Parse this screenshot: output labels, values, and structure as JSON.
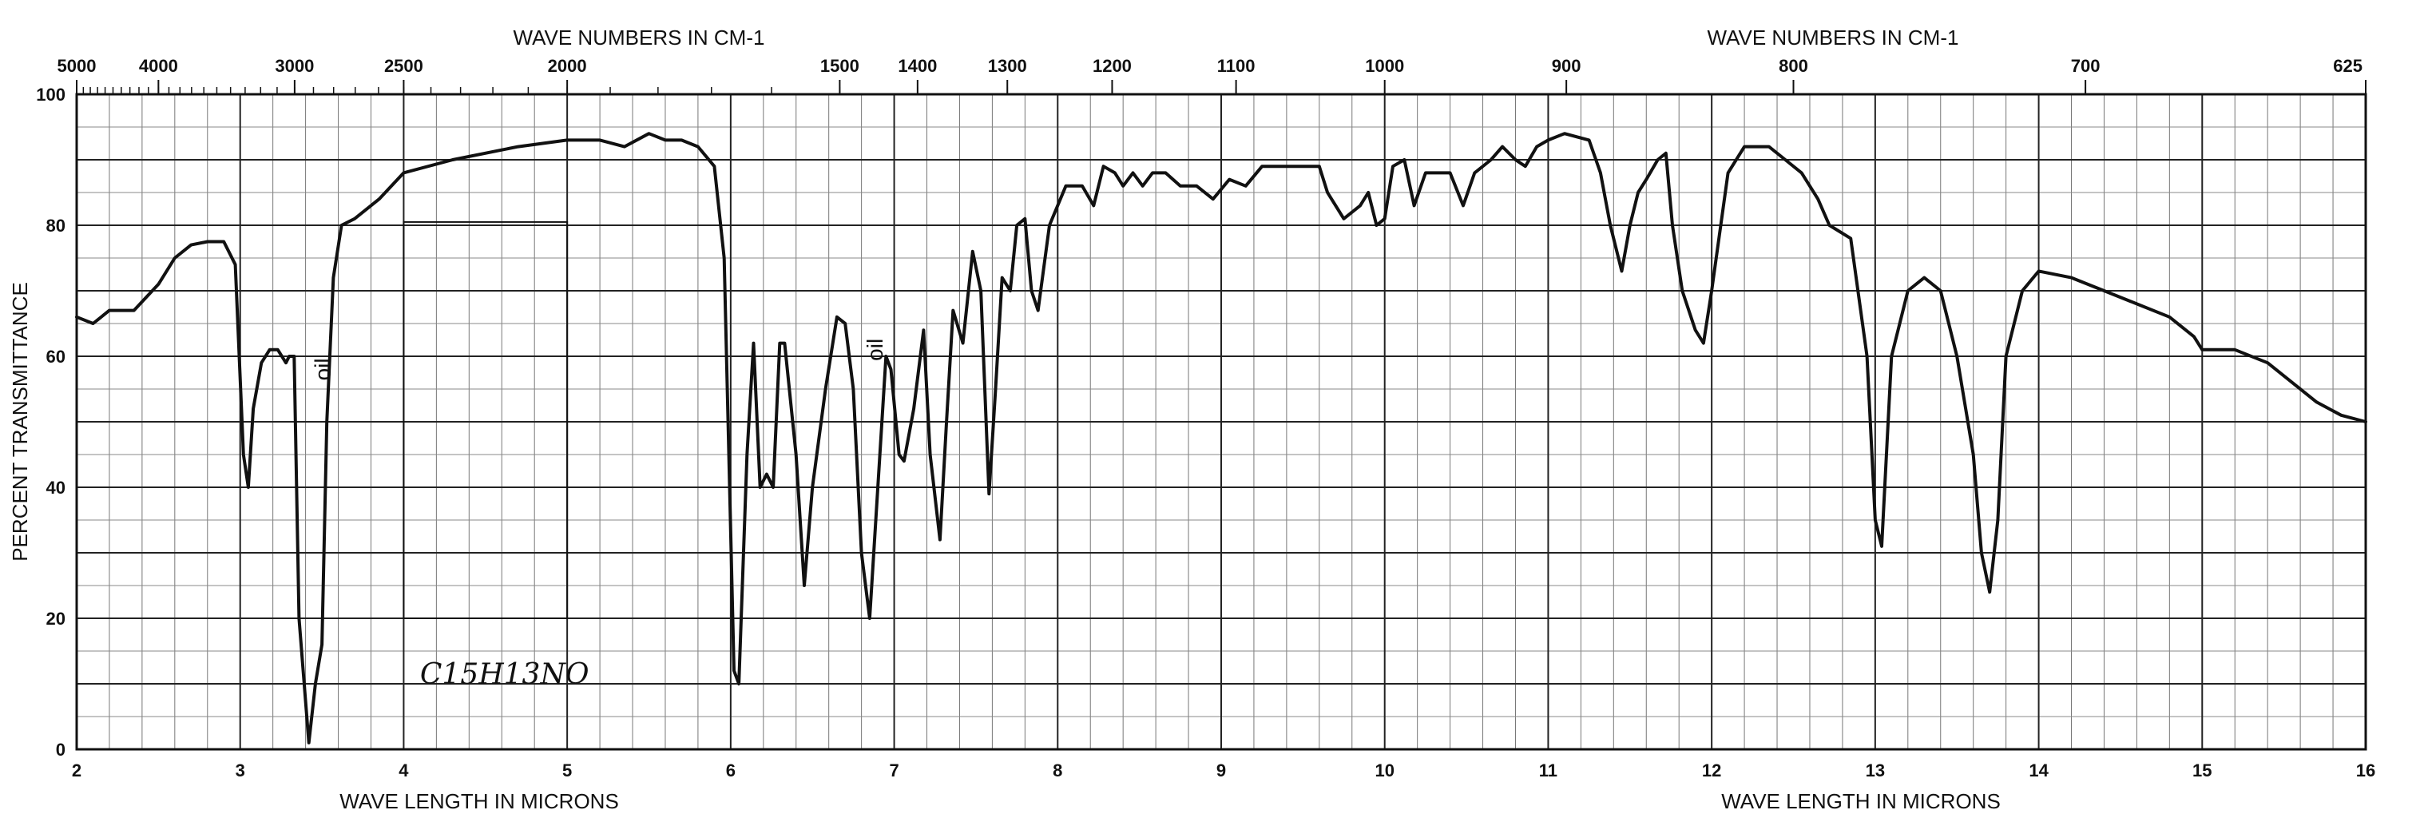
{
  "chart_data": {
    "type": "line",
    "top_axis_title_left": "WAVE NUMBERS IN CM-1",
    "top_axis_title_right": "WAVE NUMBERS IN CM-1",
    "bottom_axis_title_left": "WAVE LENGTH IN MICRONS",
    "bottom_axis_title_right": "WAVE LENGTH IN MICRONS",
    "ylabel": "PERCENT TRANSMITTANCE",
    "xlim": [
      2,
      16
    ],
    "ylim": [
      0,
      100
    ],
    "grid": true,
    "x_ticks": [
      "2",
      "3",
      "4",
      "5",
      "6",
      "7",
      "8",
      "9",
      "10",
      "11",
      "12",
      "13",
      "14",
      "15",
      "16"
    ],
    "y_ticks": [
      "0",
      "20",
      "40",
      "60",
      "80",
      "100"
    ],
    "top_ticks": [
      {
        "label": "5000",
        "micron": 2.0
      },
      {
        "label": "4000",
        "micron": 2.5
      },
      {
        "label": "3000",
        "micron": 3.333
      },
      {
        "label": "2500",
        "micron": 4.0
      },
      {
        "label": "2000",
        "micron": 5.0
      },
      {
        "label": "1500",
        "micron": 6.667
      },
      {
        "label": "1400",
        "micron": 7.143
      },
      {
        "label": "1300",
        "micron": 7.692
      },
      {
        "label": "1200",
        "micron": 8.333
      },
      {
        "label": "1100",
        "micron": 9.091
      },
      {
        "label": "1000",
        "micron": 10.0
      },
      {
        "label": "900",
        "micron": 11.111
      },
      {
        "label": "800",
        "micron": 12.5
      },
      {
        "label": "700",
        "micron": 14.286
      },
      {
        "label": "625",
        "micron": 16.0
      }
    ],
    "annotations": [
      {
        "text": "oil",
        "x": 3.55,
        "y": 58
      },
      {
        "text": "oil",
        "x": 6.93,
        "y": 61
      }
    ],
    "formula": "C15H13NO",
    "series": [
      {
        "color": "#111111",
        "points": [
          [
            2.0,
            66
          ],
          [
            2.1,
            65
          ],
          [
            2.2,
            67
          ],
          [
            2.35,
            67
          ],
          [
            2.5,
            71
          ],
          [
            2.6,
            75
          ],
          [
            2.7,
            77
          ],
          [
            2.8,
            77.5
          ],
          [
            2.9,
            77.5
          ],
          [
            2.97,
            74
          ],
          [
            3.02,
            45
          ],
          [
            3.05,
            40
          ],
          [
            3.08,
            52
          ],
          [
            3.13,
            59
          ],
          [
            3.18,
            61
          ],
          [
            3.23,
            61
          ],
          [
            3.28,
            59
          ],
          [
            3.3,
            60
          ],
          [
            3.33,
            60
          ],
          [
            3.36,
            20
          ],
          [
            3.42,
            1
          ],
          [
            3.46,
            10
          ],
          [
            3.5,
            16
          ],
          [
            3.53,
            50
          ],
          [
            3.57,
            72
          ],
          [
            3.62,
            80
          ],
          [
            3.7,
            81
          ],
          [
            3.85,
            84
          ],
          [
            4.0,
            88
          ],
          [
            4.3,
            90
          ],
          [
            4.7,
            92
          ],
          [
            5.0,
            93
          ],
          [
            5.2,
            93
          ],
          [
            5.35,
            92
          ],
          [
            5.5,
            94
          ],
          [
            5.6,
            93
          ],
          [
            5.7,
            93
          ],
          [
            5.8,
            92
          ],
          [
            5.9,
            89
          ],
          [
            5.96,
            75
          ],
          [
            6.02,
            12
          ],
          [
            6.05,
            10
          ],
          [
            6.1,
            45
          ],
          [
            6.14,
            62
          ],
          [
            6.18,
            40
          ],
          [
            6.22,
            42
          ],
          [
            6.26,
            40
          ],
          [
            6.3,
            62
          ],
          [
            6.33,
            62
          ],
          [
            6.4,
            45
          ],
          [
            6.45,
            25
          ],
          [
            6.5,
            40
          ],
          [
            6.58,
            55
          ],
          [
            6.65,
            66
          ],
          [
            6.7,
            65
          ],
          [
            6.75,
            55
          ],
          [
            6.8,
            30
          ],
          [
            6.85,
            20
          ],
          [
            6.9,
            40
          ],
          [
            6.95,
            60
          ],
          [
            6.98,
            58
          ],
          [
            7.03,
            45
          ],
          [
            7.06,
            44
          ],
          [
            7.12,
            52
          ],
          [
            7.18,
            64
          ],
          [
            7.22,
            45
          ],
          [
            7.28,
            32
          ],
          [
            7.32,
            50
          ],
          [
            7.36,
            67
          ],
          [
            7.42,
            62
          ],
          [
            7.48,
            76
          ],
          [
            7.53,
            70
          ],
          [
            7.58,
            39
          ],
          [
            7.62,
            55
          ],
          [
            7.66,
            72
          ],
          [
            7.71,
            70
          ],
          [
            7.75,
            80
          ],
          [
            7.8,
            81
          ],
          [
            7.84,
            70
          ],
          [
            7.88,
            67
          ],
          [
            7.95,
            80
          ],
          [
            8.05,
            86
          ],
          [
            8.15,
            86
          ],
          [
            8.22,
            83
          ],
          [
            8.28,
            89
          ],
          [
            8.35,
            88
          ],
          [
            8.4,
            86
          ],
          [
            8.46,
            88
          ],
          [
            8.52,
            86
          ],
          [
            8.58,
            88
          ],
          [
            8.66,
            88
          ],
          [
            8.75,
            86
          ],
          [
            8.85,
            86
          ],
          [
            8.95,
            84
          ],
          [
            9.05,
            87
          ],
          [
            9.15,
            86
          ],
          [
            9.25,
            89
          ],
          [
            9.45,
            89
          ],
          [
            9.6,
            89
          ],
          [
            9.65,
            85
          ],
          [
            9.75,
            81
          ],
          [
            9.85,
            83
          ],
          [
            9.9,
            85
          ],
          [
            9.95,
            80
          ],
          [
            10.0,
            81
          ],
          [
            10.05,
            89
          ],
          [
            10.12,
            90
          ],
          [
            10.18,
            83
          ],
          [
            10.25,
            88
          ],
          [
            10.32,
            88
          ],
          [
            10.4,
            88
          ],
          [
            10.48,
            83
          ],
          [
            10.55,
            88
          ],
          [
            10.65,
            90
          ],
          [
            10.72,
            92
          ],
          [
            10.8,
            90
          ],
          [
            10.86,
            89
          ],
          [
            10.93,
            92
          ],
          [
            11.0,
            93
          ],
          [
            11.1,
            94
          ],
          [
            11.25,
            93
          ],
          [
            11.32,
            88
          ],
          [
            11.38,
            80
          ],
          [
            11.45,
            73
          ],
          [
            11.5,
            80
          ],
          [
            11.55,
            85
          ],
          [
            11.6,
            87
          ],
          [
            11.67,
            90
          ],
          [
            11.72,
            91
          ],
          [
            11.76,
            80
          ],
          [
            11.82,
            70
          ],
          [
            11.9,
            64
          ],
          [
            11.95,
            62
          ],
          [
            12.0,
            70
          ],
          [
            12.1,
            88
          ],
          [
            12.2,
            92
          ],
          [
            12.35,
            92
          ],
          [
            12.45,
            90
          ],
          [
            12.55,
            88
          ],
          [
            12.65,
            84
          ],
          [
            12.72,
            80
          ],
          [
            12.85,
            78
          ],
          [
            12.95,
            60
          ],
          [
            13.0,
            35
          ],
          [
            13.04,
            31
          ],
          [
            13.1,
            60
          ],
          [
            13.2,
            70
          ],
          [
            13.3,
            72
          ],
          [
            13.4,
            70
          ],
          [
            13.5,
            60
          ],
          [
            13.6,
            45
          ],
          [
            13.65,
            30
          ],
          [
            13.7,
            24
          ],
          [
            13.75,
            35
          ],
          [
            13.8,
            60
          ],
          [
            13.9,
            70
          ],
          [
            14.0,
            73
          ],
          [
            14.2,
            72
          ],
          [
            14.4,
            70
          ],
          [
            14.6,
            68
          ],
          [
            14.8,
            66
          ],
          [
            14.95,
            63
          ],
          [
            15.0,
            61
          ],
          [
            15.2,
            61
          ],
          [
            15.4,
            59
          ],
          [
            15.55,
            56
          ],
          [
            15.7,
            53
          ],
          [
            15.85,
            51
          ],
          [
            16.0,
            50
          ]
        ]
      }
    ]
  }
}
